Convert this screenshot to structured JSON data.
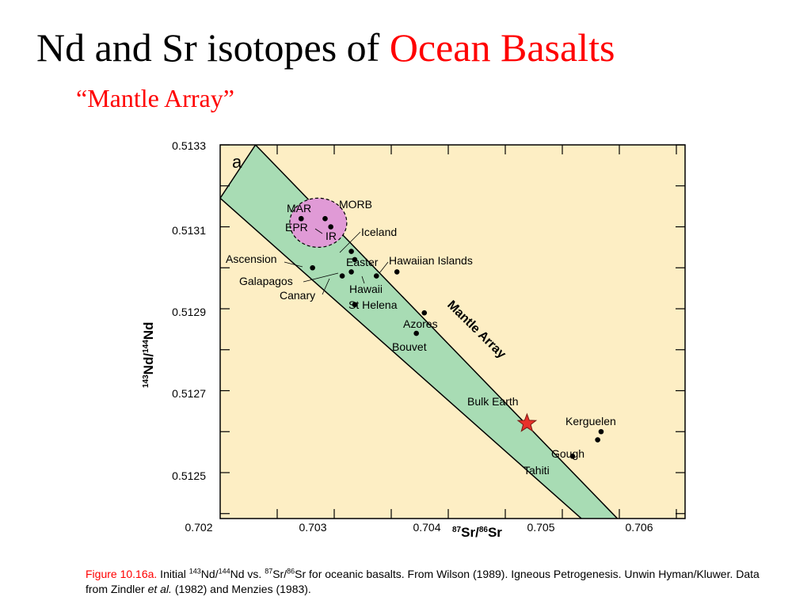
{
  "title": {
    "part1": "Nd and Sr isotopes of ",
    "part2": "Ocean Basalts"
  },
  "subtitle": "“Mantle Array”",
  "colors": {
    "title_accent": "#ff0000",
    "plot_background": "#fdeec4",
    "mantle_array_band": "#a8dcb4",
    "morb_field": "#e09ad6",
    "bulk_earth_star": "#e8312a"
  },
  "chart_data": {
    "type": "scatter",
    "panel_label": "a",
    "xlabel": "87Sr/86Sr",
    "xlabel_parts": {
      "sup1": "87",
      "mid": "Sr/",
      "sup2": "86",
      "end": "Sr"
    },
    "ylabel": "143Nd/144Nd",
    "ylabel_parts": {
      "sup1": "143",
      "mid": "Nd/",
      "sup2": "144",
      "end": "Nd"
    },
    "xlim": [
      0.702,
      0.7061
    ],
    "ylim": [
      0.51236,
      0.5133
    ],
    "x_ticks": [
      "0.702",
      "0.703",
      "0.704",
      "0.705",
      "0.706"
    ],
    "y_ticks": [
      "0.5133",
      "0.5131",
      "0.5129",
      "0.5127",
      "0.5125"
    ],
    "grid": false,
    "mantle_array": {
      "label": "Mantle Array",
      "upper_boundary": [
        [
          0.70231,
          0.5133
        ],
        [
          0.70558,
          0.51236
        ]
      ],
      "lower_boundary": [
        [
          0.702,
          0.51317
        ],
        [
          0.70528,
          0.51236
        ]
      ]
    },
    "morb_field": {
      "label": "MORB",
      "center": [
        0.70286,
        0.51311
      ],
      "radius": [
        0.00025,
        6e-05
      ]
    },
    "points": [
      {
        "label": "MAR",
        "x": 0.70271,
        "y": 0.51312
      },
      {
        "label": "EPR",
        "x": 0.70271,
        "y": 0.51312
      },
      {
        "label": "MAR",
        "x": 0.70292,
        "y": 0.51312
      },
      {
        "label": "IR",
        "x": 0.70297,
        "y": 0.5131
      },
      {
        "label": "Iceland",
        "x": 0.70315,
        "y": 0.51304
      },
      {
        "label": "Easter",
        "x": 0.70318,
        "y": 0.51302
      },
      {
        "label": "Ascension",
        "x": 0.70281,
        "y": 0.513
      },
      {
        "label": "Galapagos",
        "x": 0.70315,
        "y": 0.51299
      },
      {
        "label": "Canary",
        "x": 0.70307,
        "y": 0.51298
      },
      {
        "label": "Hawaii",
        "x": 0.70337,
        "y": 0.51298
      },
      {
        "label": "Hawaiian Islands",
        "x": 0.70355,
        "y": 0.51299
      },
      {
        "label": "St Helena",
        "x": 0.70318,
        "y": 0.51291
      },
      {
        "label": "Azores",
        "x": 0.70379,
        "y": 0.51289
      },
      {
        "label": "Bouvet",
        "x": 0.70372,
        "y": 0.51284
      },
      {
        "label": "Kerguelen",
        "x": 0.70534,
        "y": 0.5126
      },
      {
        "label": "Gough",
        "x": 0.70531,
        "y": 0.51258
      },
      {
        "label": "Tahiti",
        "x": 0.70509,
        "y": 0.51254
      }
    ],
    "bulk_earth": {
      "label": "Bulk Earth",
      "x": 0.70469,
      "y": 0.51262
    }
  },
  "caption": {
    "figure_ref": "Figure 10.16a.",
    "text1": " Initial ",
    "sup_nd143": "143",
    "text2": "Nd/",
    "sup_nd144": "144",
    "text3": "Nd vs. ",
    "sup_sr87": "87",
    "text4": "Sr/",
    "sup_sr86": "86",
    "text5": "Sr for oceanic basalts. From Wilson (1989). Igneous Petrogenesis. Unwin Hyman/Kluwer. Data from Zindler ",
    "et_al": "et al.",
    "text6": " (1982) and Menzies (1983)."
  }
}
